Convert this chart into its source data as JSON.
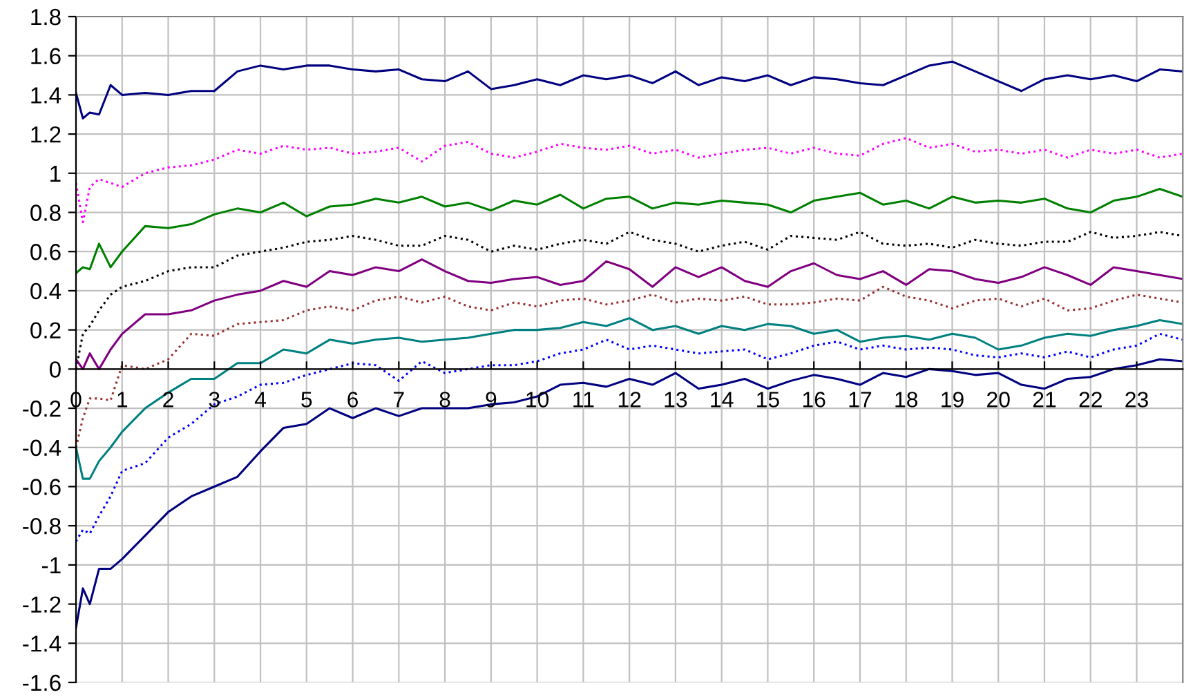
{
  "chart_data": {
    "type": "line",
    "x": [
      0,
      0.15,
      0.3,
      0.5,
      0.75,
      1,
      1.5,
      2,
      2.5,
      3,
      3.5,
      4,
      4.5,
      5,
      5.5,
      6,
      6.5,
      7,
      7.5,
      8,
      8.5,
      9,
      9.5,
      10,
      10.5,
      11,
      11.5,
      12,
      12.5,
      13,
      13.5,
      14,
      14.5,
      15,
      15.5,
      16,
      16.5,
      17,
      17.5,
      18,
      18.5,
      19,
      19.5,
      20,
      20.5,
      21,
      21.5,
      22,
      22.5,
      23,
      23.5,
      24
    ],
    "xlim": [
      0,
      24
    ],
    "xticks": [
      0,
      1,
      2,
      3,
      4,
      5,
      6,
      7,
      8,
      9,
      10,
      11,
      12,
      13,
      14,
      15,
      16,
      17,
      18,
      19,
      20,
      21,
      22,
      23
    ],
    "ylim": [
      -1.6,
      1.8
    ],
    "yticks": [
      -1.6,
      -1.4,
      -1.2,
      -1,
      -0.8,
      -0.6,
      -0.4,
      -0.2,
      0,
      0.2,
      0.4,
      0.6,
      0.8,
      1,
      1.2,
      1.4,
      1.6,
      1.8
    ],
    "grid": true,
    "legend": false,
    "series": [
      {
        "color": "#000080",
        "line_style": "solid",
        "values": [
          1.41,
          1.28,
          1.31,
          1.3,
          1.45,
          1.4,
          1.41,
          1.4,
          1.42,
          1.42,
          1.52,
          1.55,
          1.53,
          1.55,
          1.55,
          1.53,
          1.52,
          1.53,
          1.48,
          1.47,
          1.52,
          1.43,
          1.45,
          1.48,
          1.45,
          1.5,
          1.48,
          1.5,
          1.46,
          1.52,
          1.45,
          1.49,
          1.47,
          1.5,
          1.45,
          1.49,
          1.48,
          1.46,
          1.45,
          1.5,
          1.55,
          1.57,
          1.52,
          1.47,
          1.42,
          1.48,
          1.5,
          1.48,
          1.5,
          1.47,
          1.53,
          1.52
        ]
      },
      {
        "color": "#ff00ff",
        "line_style": "dotted",
        "values": [
          0.95,
          0.75,
          0.93,
          0.97,
          0.95,
          0.93,
          1.0,
          1.03,
          1.04,
          1.07,
          1.12,
          1.1,
          1.14,
          1.12,
          1.13,
          1.1,
          1.11,
          1.13,
          1.06,
          1.14,
          1.16,
          1.1,
          1.08,
          1.11,
          1.15,
          1.13,
          1.12,
          1.14,
          1.1,
          1.12,
          1.08,
          1.1,
          1.12,
          1.13,
          1.1,
          1.13,
          1.1,
          1.09,
          1.15,
          1.18,
          1.13,
          1.15,
          1.11,
          1.12,
          1.1,
          1.12,
          1.08,
          1.12,
          1.1,
          1.12,
          1.08,
          1.1
        ]
      },
      {
        "color": "#008000",
        "line_style": "solid",
        "values": [
          0.49,
          0.52,
          0.51,
          0.64,
          0.52,
          0.6,
          0.73,
          0.72,
          0.74,
          0.79,
          0.82,
          0.8,
          0.85,
          0.78,
          0.83,
          0.84,
          0.87,
          0.85,
          0.88,
          0.83,
          0.85,
          0.81,
          0.86,
          0.84,
          0.89,
          0.82,
          0.87,
          0.88,
          0.82,
          0.85,
          0.84,
          0.86,
          0.85,
          0.84,
          0.8,
          0.86,
          0.88,
          0.9,
          0.84,
          0.86,
          0.82,
          0.88,
          0.85,
          0.86,
          0.85,
          0.87,
          0.82,
          0.8,
          0.86,
          0.88,
          0.92,
          0.88
        ]
      },
      {
        "color": "#000000",
        "line_style": "dotted",
        "values": [
          0.0,
          0.18,
          0.22,
          0.3,
          0.38,
          0.42,
          0.45,
          0.5,
          0.52,
          0.52,
          0.58,
          0.6,
          0.62,
          0.65,
          0.66,
          0.68,
          0.66,
          0.63,
          0.63,
          0.68,
          0.66,
          0.6,
          0.63,
          0.61,
          0.64,
          0.66,
          0.64,
          0.7,
          0.66,
          0.64,
          0.6,
          0.63,
          0.65,
          0.61,
          0.68,
          0.67,
          0.66,
          0.7,
          0.64,
          0.63,
          0.64,
          0.62,
          0.66,
          0.64,
          0.63,
          0.65,
          0.65,
          0.7,
          0.67,
          0.68,
          0.7,
          0.68
        ]
      },
      {
        "color": "#800080",
        "line_style": "solid",
        "values": [
          0.05,
          0.0,
          0.08,
          0.0,
          0.1,
          0.18,
          0.28,
          0.28,
          0.3,
          0.35,
          0.38,
          0.4,
          0.45,
          0.42,
          0.5,
          0.48,
          0.52,
          0.5,
          0.56,
          0.5,
          0.45,
          0.44,
          0.46,
          0.47,
          0.43,
          0.45,
          0.55,
          0.51,
          0.42,
          0.52,
          0.47,
          0.52,
          0.45,
          0.42,
          0.5,
          0.54,
          0.48,
          0.46,
          0.5,
          0.43,
          0.51,
          0.5,
          0.46,
          0.44,
          0.47,
          0.52,
          0.48,
          0.43,
          0.52,
          0.5,
          0.48,
          0.46
        ]
      },
      {
        "color": "#993333",
        "line_style": "dotted",
        "values": [
          -0.4,
          -0.25,
          -0.15,
          -0.15,
          -0.16,
          0.02,
          0.0,
          0.05,
          0.18,
          0.17,
          0.23,
          0.24,
          0.25,
          0.3,
          0.32,
          0.3,
          0.35,
          0.37,
          0.34,
          0.37,
          0.32,
          0.3,
          0.34,
          0.32,
          0.35,
          0.36,
          0.33,
          0.35,
          0.38,
          0.34,
          0.36,
          0.35,
          0.37,
          0.33,
          0.33,
          0.34,
          0.36,
          0.35,
          0.42,
          0.37,
          0.35,
          0.31,
          0.35,
          0.36,
          0.32,
          0.36,
          0.3,
          0.31,
          0.35,
          0.38,
          0.36,
          0.34
        ]
      },
      {
        "color": "#008080",
        "line_style": "solid",
        "values": [
          -0.4,
          -0.56,
          -0.56,
          -0.47,
          -0.4,
          -0.32,
          -0.2,
          -0.12,
          -0.05,
          -0.05,
          0.03,
          0.03,
          0.1,
          0.08,
          0.15,
          0.13,
          0.15,
          0.16,
          0.14,
          0.15,
          0.16,
          0.18,
          0.2,
          0.2,
          0.21,
          0.24,
          0.22,
          0.26,
          0.2,
          0.22,
          0.18,
          0.22,
          0.2,
          0.23,
          0.22,
          0.18,
          0.2,
          0.14,
          0.16,
          0.17,
          0.15,
          0.18,
          0.16,
          0.1,
          0.12,
          0.16,
          0.18,
          0.17,
          0.2,
          0.22,
          0.25,
          0.23
        ]
      },
      {
        "color": "#0000ff",
        "line_style": "dotted",
        "values": [
          -0.88,
          -0.82,
          -0.84,
          -0.75,
          -0.65,
          -0.52,
          -0.48,
          -0.35,
          -0.28,
          -0.18,
          -0.14,
          -0.08,
          -0.07,
          -0.03,
          0.0,
          0.03,
          0.02,
          -0.06,
          0.04,
          -0.02,
          0.0,
          0.02,
          0.02,
          0.04,
          0.08,
          0.1,
          0.15,
          0.1,
          0.12,
          0.1,
          0.08,
          0.09,
          0.1,
          0.05,
          0.08,
          0.12,
          0.14,
          0.1,
          0.12,
          0.1,
          0.11,
          0.1,
          0.07,
          0.06,
          0.08,
          0.06,
          0.09,
          0.06,
          0.1,
          0.12,
          0.18,
          0.15
        ]
      },
      {
        "color": "#000080",
        "line_style": "solid",
        "values": [
          -1.32,
          -1.12,
          -1.2,
          -1.02,
          -1.02,
          -0.97,
          -0.85,
          -0.73,
          -0.65,
          -0.6,
          -0.55,
          -0.42,
          -0.3,
          -0.28,
          -0.2,
          -0.25,
          -0.2,
          -0.24,
          -0.2,
          -0.2,
          -0.2,
          -0.18,
          -0.17,
          -0.14,
          -0.08,
          -0.07,
          -0.09,
          -0.05,
          -0.08,
          -0.02,
          -0.1,
          -0.08,
          -0.05,
          -0.1,
          -0.06,
          -0.03,
          -0.05,
          -0.08,
          -0.02,
          -0.04,
          0.0,
          -0.01,
          -0.03,
          -0.02,
          -0.08,
          -0.1,
          -0.05,
          -0.04,
          0.0,
          0.02,
          0.05,
          0.04
        ]
      }
    ]
  }
}
